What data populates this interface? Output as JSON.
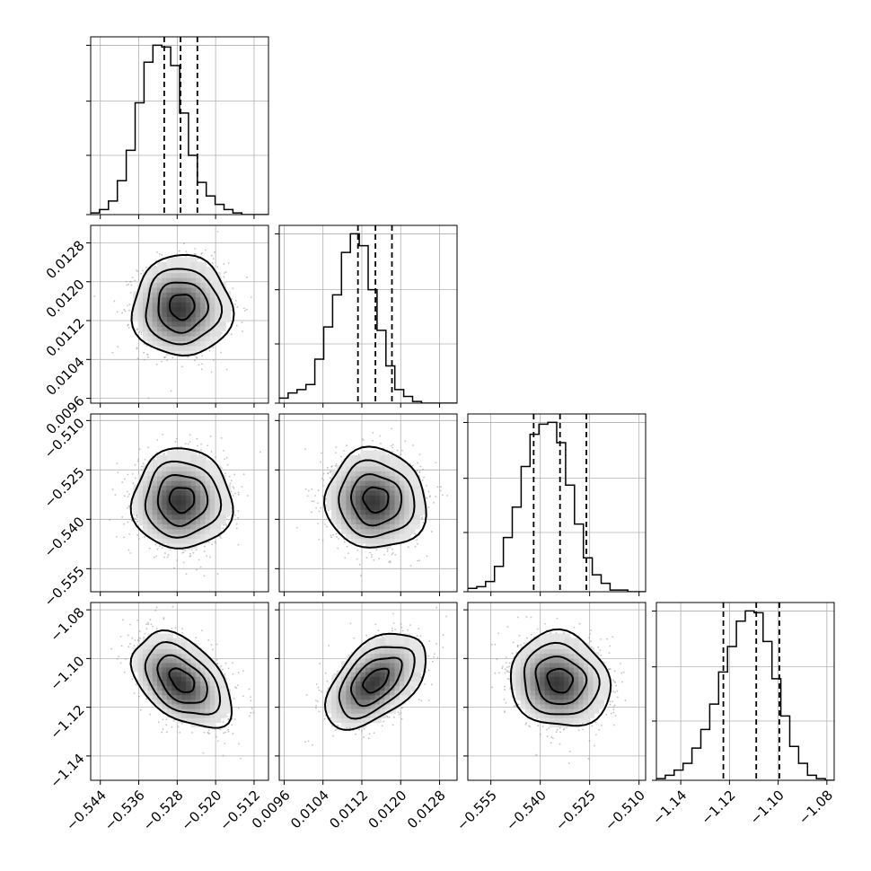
{
  "chart_data": {
    "type": "corner",
    "parameters": 4,
    "grid": true,
    "quantiles": [
      0.16,
      0.5,
      0.84
    ],
    "colors": {
      "line": "#000000",
      "grid": "#b0b0b0",
      "points": "#9a9a9a"
    },
    "axes": [
      {
        "range": [
          -0.546,
          -0.509
        ],
        "ticks": [
          -0.544,
          -0.536,
          -0.528,
          -0.52,
          -0.512
        ],
        "tick_labels": [
          "−0.544",
          "−0.536",
          "−0.528",
          "−0.520",
          "−0.512"
        ],
        "mean": -0.527,
        "sd": 0.0045
      },
      {
        "range": [
          0.0095,
          0.01316
        ],
        "ticks": [
          0.0096,
          0.0104,
          0.0112,
          0.012,
          0.0128
        ],
        "tick_labels": [
          "0.0096",
          "0.0104",
          "0.0112",
          "0.0120",
          "0.0128"
        ],
        "mean": 0.01149,
        "sd": 0.00045
      },
      {
        "range": [
          -0.562,
          -0.508
        ],
        "ticks": [
          -0.555,
          -0.54,
          -0.525,
          -0.51
        ],
        "tick_labels": [
          "−0.555",
          "−0.540",
          "−0.525",
          "−0.510"
        ],
        "mean": -0.534,
        "sd": 0.0066
      },
      {
        "range": [
          -1.15,
          -1.077
        ],
        "ticks": [
          -1.14,
          -1.12,
          -1.1,
          -1.08
        ],
        "tick_labels": [
          "−1.14",
          "−1.12",
          "−1.10",
          "−1.08"
        ],
        "mean": -1.109,
        "sd": 0.0085
      }
    ],
    "histograms": [
      {
        "param": 0,
        "bins": 20,
        "quantile_values": [
          -0.5307,
          -0.5273,
          -0.5238
        ],
        "counts": [
          0.01,
          0.03,
          0.08,
          0.2,
          0.38,
          0.66,
          0.9,
          1.0,
          0.99,
          0.88,
          0.6,
          0.35,
          0.19,
          0.11,
          0.06,
          0.03,
          0.01,
          0,
          0,
          0
        ]
      },
      {
        "param": 1,
        "bins": 20,
        "quantile_values": [
          0.01112,
          0.01148,
          0.01182
        ],
        "counts": [
          0.03,
          0.06,
          0.08,
          0.11,
          0.26,
          0.45,
          0.64,
          0.89,
          1.0,
          0.93,
          0.67,
          0.43,
          0.22,
          0.08,
          0.04,
          0.01,
          0,
          0,
          0,
          0
        ]
      },
      {
        "param": 2,
        "bins": 20,
        "quantile_values": [
          -0.542,
          -0.534,
          -0.526
        ],
        "counts": [
          0.02,
          0.03,
          0.06,
          0.15,
          0.32,
          0.5,
          0.74,
          0.93,
          0.99,
          1.0,
          0.88,
          0.63,
          0.4,
          0.2,
          0.1,
          0.05,
          0.01,
          0.01,
          0,
          0
        ]
      },
      {
        "param": 3,
        "bins": 20,
        "quantile_values": [
          -1.1225,
          -1.109,
          -1.0995
        ],
        "counts": [
          0.01,
          0.03,
          0.06,
          0.1,
          0.19,
          0.3,
          0.45,
          0.64,
          0.79,
          0.94,
          1.0,
          0.99,
          0.82,
          0.6,
          0.38,
          0.2,
          0.1,
          0.03,
          0.01,
          0
        ]
      }
    ],
    "pairs": [
      {
        "x": 0,
        "y": 1,
        "correlation": 0.0
      },
      {
        "x": 0,
        "y": 2,
        "correlation": 0.0
      },
      {
        "x": 1,
        "y": 2,
        "correlation": -0.05
      },
      {
        "x": 0,
        "y": 3,
        "correlation": -0.45
      },
      {
        "x": 1,
        "y": 3,
        "correlation": 0.5
      },
      {
        "x": 2,
        "y": 3,
        "correlation": -0.1
      }
    ],
    "contour_levels_sigma": [
      0.5,
      1.0,
      1.5,
      2.0
    ]
  }
}
